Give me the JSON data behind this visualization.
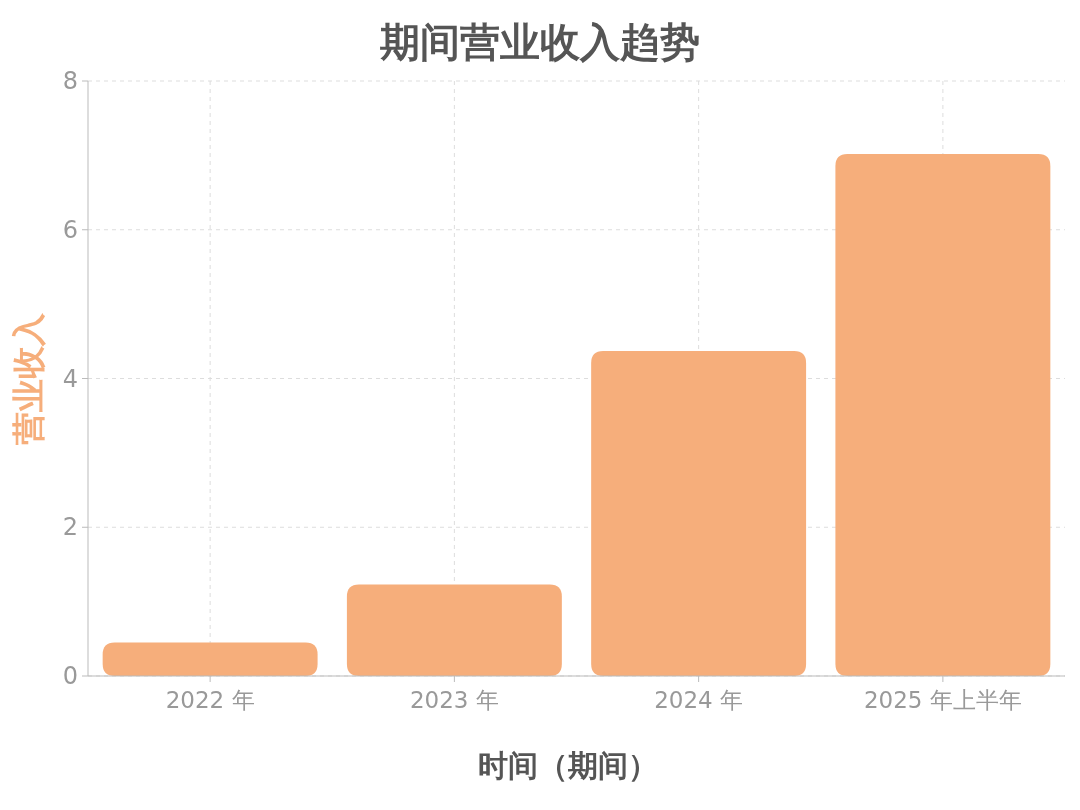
{
  "chart_data": {
    "type": "bar",
    "title": "期间营业收入趋势",
    "xlabel": "时间（期间）",
    "ylabel": "营业收入",
    "categories": [
      "2022 年",
      "2023 年",
      "2024 年",
      "2025 年上半年"
    ],
    "values": [
      0.45,
      1.23,
      4.37,
      7.02
    ],
    "color": "#f6ae7b",
    "ylim": [
      0,
      8
    ],
    "yticks": [
      0,
      2,
      4,
      6,
      8
    ],
    "grid": true
  }
}
